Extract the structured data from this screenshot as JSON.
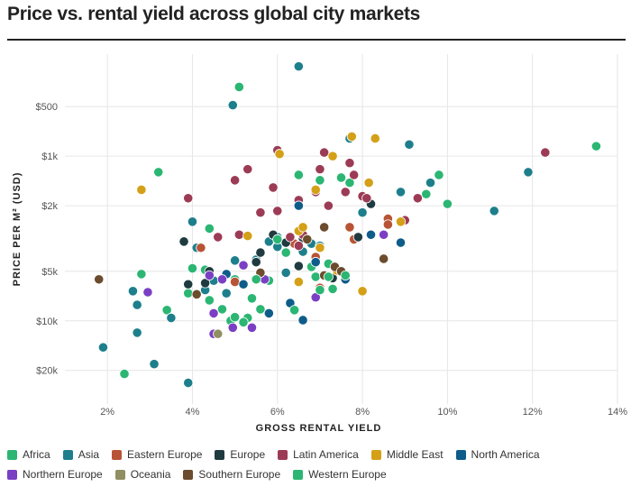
{
  "chart_data": {
    "type": "scatter",
    "title": "Price vs. rental yield across global city markets",
    "xlabel": "GROSS RENTAL YIELD",
    "ylabel": "PRICE PER M² (USD)",
    "x_ticks": [
      "2%",
      "4%",
      "6%",
      "8%",
      "10%",
      "12%",
      "14%"
    ],
    "x_tick_values": [
      2,
      4,
      6,
      8,
      10,
      12,
      14
    ],
    "y_ticks": [
      "$500",
      "$1k",
      "$2k",
      "$5k",
      "$10k",
      "$20k"
    ],
    "y_tick_values": [
      500,
      1000,
      2000,
      5000,
      10000,
      20000
    ],
    "xlim": [
      1,
      14
    ],
    "ylim": [
      32000,
      240
    ],
    "y_scale": "log (inverted)",
    "grid": true,
    "legend_position": "bottom",
    "series": [
      {
        "name": "Africa",
        "color": "#2bb673",
        "points": [
          [
            2.4,
            21000
          ],
          [
            3.4,
            8600
          ],
          [
            3.9,
            6800
          ],
          [
            4.0,
            4800
          ],
          [
            4.3,
            4900
          ],
          [
            4.7,
            8500
          ],
          [
            4.9,
            10000
          ],
          [
            5.1,
            380
          ],
          [
            5.3,
            9600
          ],
          [
            5.4,
            7300
          ],
          [
            5.8,
            5700
          ],
          [
            6.5,
            1300
          ],
          [
            6.8,
            4700
          ],
          [
            6.9,
            5400
          ],
          [
            7.0,
            1400
          ],
          [
            7.2,
            4500
          ],
          [
            7.5,
            1350
          ],
          [
            7.7,
            1450
          ],
          [
            9.5,
            1700
          ],
          [
            9.8,
            1300
          ],
          [
            10.0,
            1950
          ],
          [
            13.5,
            870
          ],
          [
            4.4,
            2750
          ],
          [
            5.0,
            5600
          ],
          [
            3.2,
            1250
          ]
        ]
      },
      {
        "name": "Asia",
        "color": "#1e7f8c",
        "points": [
          [
            1.9,
            14500
          ],
          [
            2.6,
            6600
          ],
          [
            2.7,
            8000
          ],
          [
            2.7,
            11800
          ],
          [
            3.1,
            18300
          ],
          [
            3.5,
            9600
          ],
          [
            3.9,
            23800
          ],
          [
            4.0,
            2500
          ],
          [
            4.1,
            3600
          ],
          [
            4.3,
            6500
          ],
          [
            4.5,
            5700
          ],
          [
            4.8,
            6800
          ],
          [
            4.95,
            490
          ],
          [
            5.5,
            4250
          ],
          [
            5.8,
            3300
          ],
          [
            6.0,
            3550
          ],
          [
            6.2,
            5100
          ],
          [
            6.5,
            285
          ],
          [
            6.6,
            3800
          ],
          [
            6.8,
            3400
          ],
          [
            7.0,
            3500
          ],
          [
            7.7,
            780
          ],
          [
            8.0,
            2200
          ],
          [
            8.9,
            1650
          ],
          [
            9.1,
            850
          ],
          [
            9.6,
            1450
          ],
          [
            11.1,
            2150
          ],
          [
            11.9,
            1250
          ],
          [
            6.0,
            3100
          ],
          [
            5.0,
            4300
          ]
        ]
      },
      {
        "name": "Eastern Europe",
        "color": "#b85435",
        "points": [
          [
            4.2,
            3600
          ],
          [
            5.0,
            5800
          ],
          [
            6.9,
            4100
          ],
          [
            7.0,
            6300
          ],
          [
            7.7,
            2700
          ],
          [
            7.8,
            3200
          ],
          [
            8.6,
            2400
          ],
          [
            8.6,
            2600
          ],
          [
            6.4,
            3400
          ]
        ]
      },
      {
        "name": "Europe",
        "color": "#1f3b40",
        "points": [
          [
            3.8,
            3300
          ],
          [
            3.9,
            6000
          ],
          [
            4.3,
            5900
          ],
          [
            4.4,
            5000
          ],
          [
            5.5,
            4400
          ],
          [
            5.6,
            3850
          ],
          [
            5.9,
            3000
          ],
          [
            6.2,
            3350
          ],
          [
            6.5,
            4650
          ],
          [
            6.6,
            3150
          ],
          [
            7.3,
            5500
          ],
          [
            7.9,
            3100
          ],
          [
            8.2,
            1950
          ]
        ]
      },
      {
        "name": "Latin America",
        "color": "#9c3b55",
        "points": [
          [
            3.9,
            1800
          ],
          [
            4.6,
            3100
          ],
          [
            5.0,
            1400
          ],
          [
            5.3,
            1200
          ],
          [
            5.1,
            3000
          ],
          [
            5.6,
            2200
          ],
          [
            5.9,
            1550
          ],
          [
            6.0,
            920
          ],
          [
            6.0,
            2150
          ],
          [
            6.3,
            3100
          ],
          [
            6.5,
            1850
          ],
          [
            6.6,
            3000
          ],
          [
            6.9,
            1650
          ],
          [
            7.0,
            1200
          ],
          [
            7.1,
            950
          ],
          [
            7.2,
            2000
          ],
          [
            7.6,
            1650
          ],
          [
            7.7,
            1100
          ],
          [
            7.8,
            1300
          ],
          [
            8.0,
            1750
          ],
          [
            8.1,
            1800
          ],
          [
            9.0,
            2450
          ],
          [
            9.3,
            1800
          ],
          [
            12.3,
            950
          ],
          [
            6.5,
            3500
          ]
        ]
      },
      {
        "name": "Middle East",
        "color": "#d4a017",
        "points": [
          [
            2.8,
            1600
          ],
          [
            5.3,
            3050
          ],
          [
            6.05,
            970
          ],
          [
            6.5,
            2850
          ],
          [
            6.5,
            5800
          ],
          [
            6.9,
            1600
          ],
          [
            7.4,
            4950
          ],
          [
            7.75,
            760
          ],
          [
            7.3,
            1000
          ],
          [
            8.0,
            6600
          ],
          [
            8.15,
            1450
          ],
          [
            8.3,
            780
          ],
          [
            8.9,
            2500
          ],
          [
            7.0,
            3600
          ],
          [
            6.6,
            2700
          ]
        ]
      },
      {
        "name": "North America",
        "color": "#0e5c8a",
        "points": [
          [
            6.5,
            2000
          ],
          [
            6.6,
            9900
          ],
          [
            6.3,
            7800
          ],
          [
            5.8,
            9000
          ],
          [
            6.9,
            4400
          ],
          [
            7.6,
            5600
          ],
          [
            8.2,
            3000
          ],
          [
            8.9,
            3350
          ],
          [
            5.2,
            6000
          ],
          [
            4.8,
            5200
          ]
        ]
      },
      {
        "name": "Northern Europe",
        "color": "#7b3fc4",
        "points": [
          [
            2.95,
            6700
          ],
          [
            4.4,
            5300
          ],
          [
            4.5,
            9000
          ],
          [
            4.5,
            12000
          ],
          [
            4.7,
            5600
          ],
          [
            4.95,
            11000
          ],
          [
            5.4,
            11000
          ],
          [
            5.2,
            4600
          ],
          [
            5.7,
            5600
          ],
          [
            6.9,
            7200
          ],
          [
            8.5,
            3000
          ]
        ]
      },
      {
        "name": "Oceania",
        "color": "#8f8f62",
        "points": [
          [
            4.6,
            12000
          ]
        ]
      },
      {
        "name": "Southern Europe",
        "color": "#6b4c2c",
        "points": [
          [
            1.8,
            5600
          ],
          [
            4.1,
            6900
          ],
          [
            5.6,
            5100
          ],
          [
            6.7,
            3200
          ],
          [
            7.1,
            5300
          ],
          [
            7.35,
            4700
          ],
          [
            7.5,
            5000
          ],
          [
            8.5,
            4200
          ],
          [
            7.1,
            2700
          ]
        ]
      },
      {
        "name": "Western Europe",
        "color": "#2bb673",
        "points": [
          [
            2.8,
            5200
          ],
          [
            4.4,
            7500
          ],
          [
            5.0,
            9500
          ],
          [
            5.2,
            10200
          ],
          [
            5.5,
            5600
          ],
          [
            5.6,
            8500
          ],
          [
            6.0,
            3200
          ],
          [
            6.2,
            3850
          ],
          [
            6.4,
            8600
          ],
          [
            7.0,
            6500
          ],
          [
            7.2,
            5400
          ],
          [
            7.3,
            6400
          ],
          [
            7.6,
            5300
          ]
        ]
      }
    ]
  }
}
